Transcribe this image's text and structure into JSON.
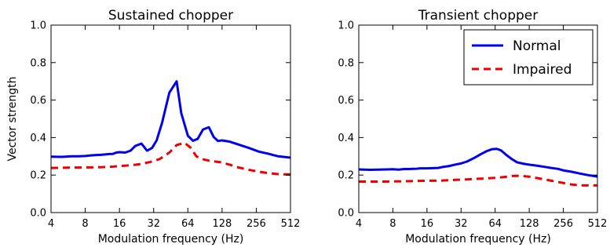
{
  "chart_data": [
    {
      "type": "line",
      "title": "Sustained chopper",
      "xlabel": "Modulation frequency (Hz)",
      "ylabel": "Vector strength",
      "xscale": "log2",
      "xlim": [
        4,
        512
      ],
      "ylim": [
        0,
        1.0
      ],
      "xticks": [
        4,
        8,
        16,
        32,
        64,
        128,
        256,
        512
      ],
      "xtick_labels": [
        "4",
        "8",
        "16",
        "32",
        "64",
        "128",
        "256",
        "512"
      ],
      "yticks": [
        0,
        0.2,
        0.4,
        0.6,
        0.8,
        1.0
      ],
      "ytick_labels": [
        "0.0",
        "0.2",
        "0.4",
        "0.6",
        "0.8",
        "1.0"
      ],
      "grid": false,
      "series": [
        {
          "name": "Normal",
          "color": "#0000ee",
          "style": "solid",
          "points": [
            [
              4,
              0.298
            ],
            [
              5,
              0.297
            ],
            [
              6,
              0.3
            ],
            [
              7,
              0.3
            ],
            [
              8,
              0.302
            ],
            [
              9,
              0.305
            ],
            [
              10,
              0.307
            ],
            [
              11,
              0.308
            ],
            [
              12,
              0.31
            ],
            [
              13,
              0.312
            ],
            [
              14,
              0.313
            ],
            [
              15,
              0.32
            ],
            [
              16,
              0.322
            ],
            [
              18,
              0.32
            ],
            [
              20,
              0.33
            ],
            [
              22,
              0.355
            ],
            [
              25,
              0.368
            ],
            [
              28,
              0.33
            ],
            [
              31,
              0.345
            ],
            [
              34,
              0.385
            ],
            [
              38,
              0.48
            ],
            [
              44,
              0.64
            ],
            [
              51,
              0.7
            ],
            [
              56,
              0.53
            ],
            [
              64,
              0.41
            ],
            [
              71,
              0.383
            ],
            [
              78,
              0.393
            ],
            [
              87,
              0.443
            ],
            [
              98,
              0.455
            ],
            [
              108,
              0.403
            ],
            [
              118,
              0.382
            ],
            [
              128,
              0.385
            ],
            [
              150,
              0.378
            ],
            [
              180,
              0.362
            ],
            [
              220,
              0.345
            ],
            [
              270,
              0.325
            ],
            [
              320,
              0.315
            ],
            [
              400,
              0.3
            ],
            [
              512,
              0.293
            ]
          ]
        },
        {
          "name": "Impaired",
          "color": "#ee0000",
          "style": "dashed",
          "points": [
            [
              4,
              0.238
            ],
            [
              6,
              0.24
            ],
            [
              8,
              0.241
            ],
            [
              10,
              0.241
            ],
            [
              12,
              0.243
            ],
            [
              14,
              0.245
            ],
            [
              16,
              0.248
            ],
            [
              20,
              0.252
            ],
            [
              24,
              0.258
            ],
            [
              30,
              0.27
            ],
            [
              36,
              0.285
            ],
            [
              44,
              0.32
            ],
            [
              51,
              0.36
            ],
            [
              60,
              0.372
            ],
            [
              68,
              0.345
            ],
            [
              76,
              0.3
            ],
            [
              86,
              0.285
            ],
            [
              98,
              0.277
            ],
            [
              112,
              0.272
            ],
            [
              128,
              0.267
            ],
            [
              150,
              0.255
            ],
            [
              180,
              0.24
            ],
            [
              220,
              0.228
            ],
            [
              270,
              0.218
            ],
            [
              330,
              0.21
            ],
            [
              400,
              0.205
            ],
            [
              512,
              0.203
            ]
          ]
        }
      ]
    },
    {
      "type": "line",
      "title": "Transient chopper",
      "xlabel": "Modulation frequency (Hz)",
      "ylabel": "",
      "xscale": "log2",
      "xlim": [
        4,
        512
      ],
      "ylim": [
        0,
        1.0
      ],
      "xticks": [
        4,
        8,
        16,
        32,
        64,
        128,
        256,
        512
      ],
      "xtick_labels": [
        "4",
        "8",
        "16",
        "32",
        "64",
        "128",
        "256",
        "512"
      ],
      "yticks": [
        0,
        0.2,
        0.4,
        0.6,
        0.8,
        1.0
      ],
      "ytick_labels": [
        "0.0",
        "0.2",
        "0.4",
        "0.6",
        "0.8",
        "1.0"
      ],
      "grid": false,
      "legend": {
        "location": "top-right",
        "entries": [
          "Normal",
          "Impaired"
        ]
      },
      "series": [
        {
          "name": "Normal",
          "color": "#0000ee",
          "style": "solid",
          "points": [
            [
              4,
              0.23
            ],
            [
              5,
              0.228
            ],
            [
              6,
              0.229
            ],
            [
              7,
              0.23
            ],
            [
              8,
              0.231
            ],
            [
              9,
              0.229
            ],
            [
              10,
              0.232
            ],
            [
              11,
              0.232
            ],
            [
              12,
              0.233
            ],
            [
              13,
              0.234
            ],
            [
              14,
              0.236
            ],
            [
              16,
              0.236
            ],
            [
              18,
              0.237
            ],
            [
              20,
              0.238
            ],
            [
              22,
              0.243
            ],
            [
              25,
              0.248
            ],
            [
              28,
              0.255
            ],
            [
              32,
              0.262
            ],
            [
              36,
              0.272
            ],
            [
              42,
              0.292
            ],
            [
              48,
              0.312
            ],
            [
              54,
              0.328
            ],
            [
              60,
              0.338
            ],
            [
              66,
              0.34
            ],
            [
              72,
              0.332
            ],
            [
              80,
              0.308
            ],
            [
              90,
              0.285
            ],
            [
              100,
              0.268
            ],
            [
              115,
              0.26
            ],
            [
              130,
              0.255
            ],
            [
              150,
              0.25
            ],
            [
              170,
              0.245
            ],
            [
              200,
              0.238
            ],
            [
              230,
              0.233
            ],
            [
              256,
              0.225
            ],
            [
              300,
              0.218
            ],
            [
              360,
              0.208
            ],
            [
              420,
              0.2
            ],
            [
              512,
              0.192
            ]
          ]
        },
        {
          "name": "Impaired",
          "color": "#ee0000",
          "style": "dashed",
          "points": [
            [
              4,
              0.165
            ],
            [
              6,
              0.165
            ],
            [
              8,
              0.166
            ],
            [
              10,
              0.167
            ],
            [
              12,
              0.168
            ],
            [
              16,
              0.17
            ],
            [
              20,
              0.17
            ],
            [
              24,
              0.172
            ],
            [
              30,
              0.175
            ],
            [
              36,
              0.177
            ],
            [
              44,
              0.18
            ],
            [
              52,
              0.182
            ],
            [
              60,
              0.184
            ],
            [
              70,
              0.187
            ],
            [
              80,
              0.191
            ],
            [
              90,
              0.195
            ],
            [
              100,
              0.196
            ],
            [
              115,
              0.194
            ],
            [
              130,
              0.191
            ],
            [
              150,
              0.184
            ],
            [
              175,
              0.177
            ],
            [
              200,
              0.17
            ],
            [
              230,
              0.163
            ],
            [
              256,
              0.158
            ],
            [
              300,
              0.15
            ],
            [
              360,
              0.145
            ],
            [
              420,
              0.145
            ],
            [
              512,
              0.145
            ]
          ]
        }
      ]
    }
  ]
}
